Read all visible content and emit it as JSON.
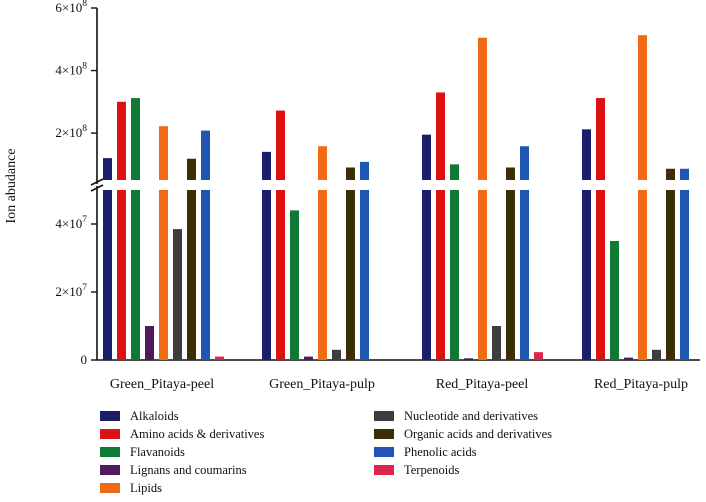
{
  "chart_data": {
    "type": "bar",
    "ylabel": "Ion abudance",
    "y_axis": "broken",
    "categories": [
      "Green_Pitaya-peel",
      "Green_Pitaya-pulp",
      "Red_Pitaya-peel",
      "Red_Pitaya-pulp"
    ],
    "lower_segment": {
      "ylim": [
        0,
        50000000
      ],
      "ticks": [
        "0",
        "2×10",
        "4×10"
      ],
      "tick_exponent": "7"
    },
    "upper_segment": {
      "ylim": [
        50000000,
        600000000
      ],
      "ticks": [
        "2×10",
        "4×10",
        "6×10"
      ],
      "tick_exponent": "8"
    },
    "legend_position": "bottom",
    "series": [
      {
        "name": "Alkaloids",
        "color": "#1b1f6b",
        "values": [
          120000000,
          140000000,
          195000000,
          212000000
        ]
      },
      {
        "name": "Amino acids & derivatives",
        "color": "#dd1111",
        "values": [
          300000000,
          272000000,
          330000000,
          312000000
        ]
      },
      {
        "name": "Flavanoids",
        "color": "#0f7a36",
        "values": [
          312000000,
          44000000,
          100000000,
          35000000
        ]
      },
      {
        "name": "Lignans and coumarins",
        "color": "#4d1a5c",
        "values": [
          10000000,
          1000000,
          500000,
          700000
        ]
      },
      {
        "name": "Lipids",
        "color": "#f06b14",
        "values": [
          222000000,
          158000000,
          505000000,
          513000000
        ]
      },
      {
        "name": "Nucleotide and derivatives",
        "color": "#3d3d3d",
        "values": [
          38500000,
          3000000,
          10000000,
          3000000
        ]
      },
      {
        "name": "Organic acids and derivatives",
        "color": "#3b3005",
        "values": [
          118000000,
          90000000,
          90000000,
          86000000
        ]
      },
      {
        "name": "Phenolic acids",
        "color": "#1f55b3",
        "values": [
          208000000,
          108000000,
          158000000,
          86000000
        ]
      },
      {
        "name": "Terpenoids",
        "color": "#e0244e",
        "values": [
          1000000,
          0,
          2300000,
          0
        ]
      }
    ]
  }
}
